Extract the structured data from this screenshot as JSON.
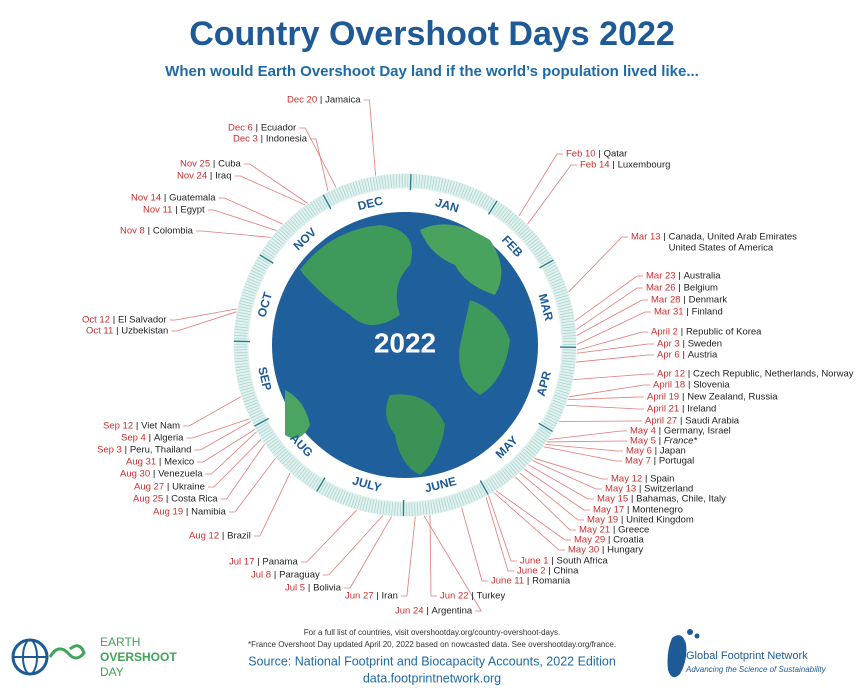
{
  "header": {
    "title": "Country Overshoot Days 2022",
    "subtitle": "When would Earth Overshoot Day land if the world’s population lived like..."
  },
  "globe": {
    "year": "2022"
  },
  "months": [
    "JAN",
    "FEB",
    "MAR",
    "APR",
    "MAY",
    "JUNE",
    "JULY",
    "AUG",
    "SEP",
    "OCT",
    "NOV",
    "DEC"
  ],
  "entries": [
    {
      "date": "Dec 20",
      "country": "Jamaica"
    },
    {
      "date": "Dec 6",
      "country": "Ecuador"
    },
    {
      "date": "Dec 3",
      "country": "Indonesia"
    },
    {
      "date": "Nov 25",
      "country": "Cuba"
    },
    {
      "date": "Nov 24",
      "country": "Iraq"
    },
    {
      "date": "Nov 14",
      "country": "Guatemala"
    },
    {
      "date": "Nov 11",
      "country": "Egypt"
    },
    {
      "date": "Nov 8",
      "country": "Colombia"
    },
    {
      "date": "Oct 12",
      "country": "El Salvador"
    },
    {
      "date": "Oct 11",
      "country": "Uzbekistan"
    },
    {
      "date": "Sep 12",
      "country": "Viet Nam"
    },
    {
      "date": "Sep 4",
      "country": "Algeria"
    },
    {
      "date": "Sep 3",
      "country": "Peru, Thailand"
    },
    {
      "date": "Aug 31",
      "country": "Mexico"
    },
    {
      "date": "Aug 30",
      "country": "Venezuela"
    },
    {
      "date": "Aug 27",
      "country": "Ukraine"
    },
    {
      "date": "Aug 25",
      "country": "Costa Rica"
    },
    {
      "date": "Aug 19",
      "country": "Namibia"
    },
    {
      "date": "Aug 12",
      "country": "Brazil"
    },
    {
      "date": "Jul 17",
      "country": "Panama"
    },
    {
      "date": "Jul 8",
      "country": "Paraguay"
    },
    {
      "date": "Jul 5",
      "country": "Bolivia"
    },
    {
      "date": "Jun 27",
      "country": "Iran"
    },
    {
      "date": "Jun 24",
      "country": "Argentina"
    },
    {
      "date": "Jun 22",
      "country": "Turkey"
    },
    {
      "date": "June 11",
      "country": "Romania"
    },
    {
      "date": "June 2",
      "country": "China"
    },
    {
      "date": "June 1",
      "country": "South Africa"
    },
    {
      "date": "May 30",
      "country": "Hungary"
    },
    {
      "date": "May 29",
      "country": "Croatia"
    },
    {
      "date": "May 21",
      "country": "Greece"
    },
    {
      "date": "May 19",
      "country": "United Kingdom"
    },
    {
      "date": "May 17",
      "country": "Montenegro"
    },
    {
      "date": "May 15",
      "country": "Bahamas, Chile, Italy"
    },
    {
      "date": "May 13",
      "country": "Switzerland"
    },
    {
      "date": "May 12",
      "country": "Spain"
    },
    {
      "date": "May 7",
      "country": "Portugal"
    },
    {
      "date": "May 6",
      "country": "Japan"
    },
    {
      "date": "May 5",
      "country": "France*"
    },
    {
      "date": "May 4",
      "country": "Germany, Israel"
    },
    {
      "date": "April 27",
      "country": "Saudi Arabia"
    },
    {
      "date": "April 21",
      "country": "Ireland"
    },
    {
      "date": "April 19",
      "country": "New Zealand, Russia"
    },
    {
      "date": "April 18",
      "country": "Slovenia"
    },
    {
      "date": "Apr 12",
      "country": "Czech Republic, Netherlands, Norway"
    },
    {
      "date": "Apr 6",
      "country": "Austria"
    },
    {
      "date": "Apr 3",
      "country": "Sweden"
    },
    {
      "date": "April 2",
      "country": "Republic of Korea"
    },
    {
      "date": "Mar 31",
      "country": "Finland"
    },
    {
      "date": "Mar 28",
      "country": "Denmark"
    },
    {
      "date": "Mar 26",
      "country": "Belgium"
    },
    {
      "date": "Mar 23",
      "country": "Australia"
    },
    {
      "date": "Mar 13",
      "country": [
        "Canada, United Arab Emirates",
        "United States of America"
      ]
    },
    {
      "date": "Feb 14",
      "country": "Luxembourg"
    },
    {
      "date": "Feb 10",
      "country": "Qatar"
    }
  ],
  "footer": {
    "note": "For a full list of countries, visit overshootday.org/country-overshoot-days.",
    "france_note": "*France Overshoot Day updated April 20, 2022 based on nowcasted data. See overshootday.org/france.",
    "source": "Source: National Footprint and Biocapacity Accounts, 2022 Edition",
    "url": "data.footprintnetwork.org"
  },
  "logos": {
    "eod": [
      "EARTH",
      "OVERSHOOT",
      "DAY"
    ],
    "gfn_name": "Global Footprint Network",
    "gfn_tagline": "Advancing the Science of Sustainability"
  }
}
